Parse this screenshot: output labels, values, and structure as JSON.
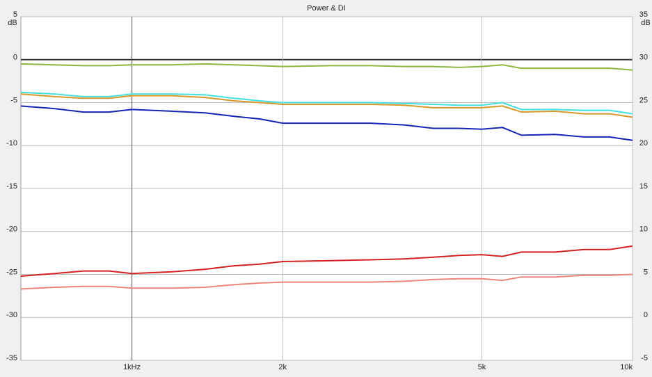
{
  "chart_data": {
    "type": "line",
    "title": "Power & DI",
    "y_label": "dB",
    "y2_label": "dB",
    "x": [
      600,
      700,
      800,
      900,
      1000,
      1200,
      1400,
      1600,
      1800,
      2000,
      2500,
      3000,
      3500,
      4000,
      4500,
      5000,
      5500,
      6000,
      7000,
      8000,
      9000,
      10000
    ],
    "xlim": [
      600,
      10000
    ],
    "log_x": true,
    "xticks": [
      {
        "value": 1000,
        "label": "1kHz"
      },
      {
        "value": 2000,
        "label": "2k"
      },
      {
        "value": 5000,
        "label": "5k"
      },
      {
        "value": 10000,
        "label": "10k"
      }
    ],
    "ylim": [
      -35,
      5
    ],
    "yticks": [
      5,
      0,
      -5,
      -10,
      -15,
      -20,
      -25,
      -30,
      -35
    ],
    "y2lim": [
      -5,
      35
    ],
    "y2ticks": [
      35,
      30,
      25,
      20,
      15,
      10,
      5,
      0,
      -5
    ],
    "grid": true,
    "series": [
      {
        "color": "#8cb840",
        "values": [
          -0.5,
          -0.6,
          -0.7,
          -0.7,
          -0.6,
          -0.6,
          -0.5,
          -0.6,
          -0.7,
          -0.8,
          -0.7,
          -0.7,
          -0.8,
          -0.8,
          -0.9,
          -0.8,
          -0.6,
          -1.0,
          -1.0,
          -1.0,
          -1.0,
          -1.2
        ]
      },
      {
        "color": "#44e0e0",
        "values": [
          -3.8,
          -4.0,
          -4.3,
          -4.3,
          -4.0,
          -4.0,
          -4.1,
          -4.5,
          -4.8,
          -5.0,
          -5.0,
          -5.0,
          -5.1,
          -5.2,
          -5.3,
          -5.3,
          -5.0,
          -5.8,
          -5.8,
          -5.9,
          -5.9,
          -6.3
        ]
      },
      {
        "color": "#d8982c",
        "values": [
          -4.0,
          -4.3,
          -4.5,
          -4.5,
          -4.2,
          -4.2,
          -4.4,
          -4.8,
          -5.0,
          -5.2,
          -5.2,
          -5.2,
          -5.3,
          -5.6,
          -5.6,
          -5.6,
          -5.4,
          -6.1,
          -6.0,
          -6.3,
          -6.3,
          -6.7
        ]
      },
      {
        "color": "#1424b4",
        "values": [
          -5.4,
          -5.7,
          -6.1,
          -6.1,
          -5.8,
          -6.0,
          -6.2,
          -6.6,
          -6.9,
          -7.4,
          -7.4,
          -7.4,
          -7.6,
          -8.0,
          -8.0,
          -8.1,
          -7.9,
          -8.8,
          -8.7,
          -9.0,
          -9.0,
          -9.4
        ]
      },
      {
        "color": "#d42020",
        "axis": "y2",
        "values": [
          4.8,
          5.1,
          5.4,
          5.4,
          5.1,
          5.3,
          5.6,
          6.0,
          6.2,
          6.5,
          6.6,
          6.7,
          6.8,
          7.0,
          7.2,
          7.3,
          7.1,
          7.6,
          7.6,
          7.9,
          7.9,
          8.3
        ]
      },
      {
        "color": "#ec8478",
        "axis": "y2",
        "values": [
          3.3,
          3.5,
          3.6,
          3.6,
          3.4,
          3.4,
          3.5,
          3.8,
          4.0,
          4.1,
          4.1,
          4.1,
          4.2,
          4.4,
          4.5,
          4.5,
          4.3,
          4.7,
          4.7,
          4.9,
          4.9,
          5.0
        ]
      }
    ]
  }
}
